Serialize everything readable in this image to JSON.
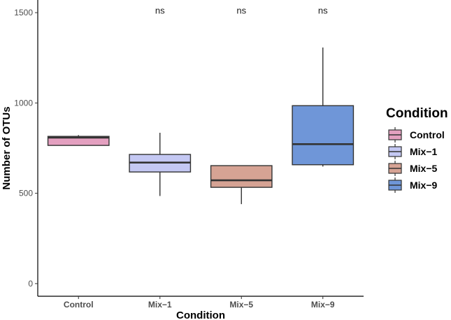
{
  "chart_data": {
    "type": "box",
    "title": "",
    "xlabel": "Condition",
    "ylabel": "Number of OTUs",
    "ylim": [
      -70,
      1570
    ],
    "yticks": [
      0,
      500,
      1000,
      1500
    ],
    "categories": [
      "Control",
      "Mix−1",
      "Mix−5",
      "Mix−9"
    ],
    "boxes": [
      {
        "name": "Control",
        "whisker_low": 765,
        "q1": 765,
        "median": 808,
        "q3": 815,
        "whisker_high": 822,
        "color": "#e4a0c0"
      },
      {
        "name": "Mix−1",
        "whisker_low": 485,
        "q1": 618,
        "median": 670,
        "q3": 715,
        "whisker_high": 835,
        "color": "#c4c8f3"
      },
      {
        "name": "Mix−5",
        "whisker_low": 440,
        "q1": 533,
        "median": 572,
        "q3": 653,
        "whisker_high": 653,
        "color": "#d6a394"
      },
      {
        "name": "Mix−9",
        "whisker_low": 648,
        "q1": 658,
        "median": 772,
        "q3": 985,
        "whisker_high": 1307,
        "color": "#6f96d8"
      }
    ],
    "annotations": [
      {
        "category": "Mix−1",
        "text": "ns",
        "y": 1510
      },
      {
        "category": "Mix−5",
        "text": "ns",
        "y": 1510
      },
      {
        "category": "Mix−9",
        "text": "ns",
        "y": 1510
      }
    ],
    "legend": {
      "title": "Condition",
      "position": "right",
      "entries": [
        {
          "label": "Control",
          "color": "#e4a0c0"
        },
        {
          "label": "Mix−1",
          "color": "#c4c8f3"
        },
        {
          "label": "Mix−5",
          "color": "#d6a394"
        },
        {
          "label": "Mix−9",
          "color": "#6f96d8"
        }
      ]
    }
  }
}
